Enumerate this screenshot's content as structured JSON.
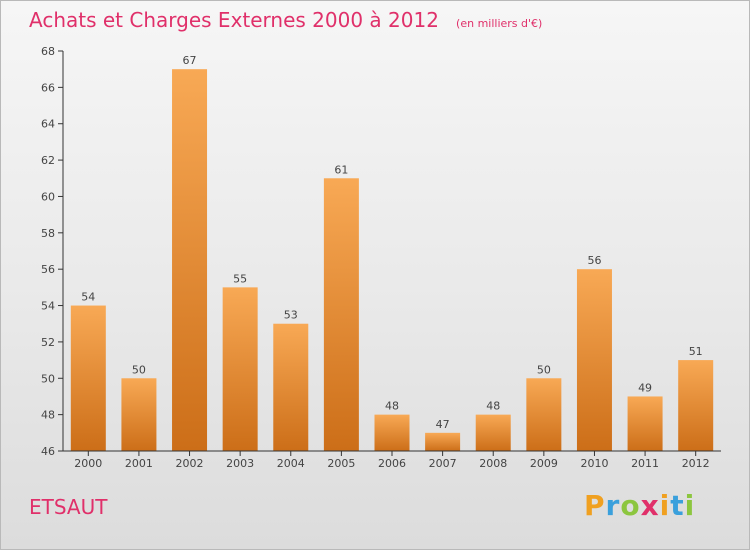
{
  "header": {
    "title": "Achats et Charges Externes 2000 à 2012",
    "subtitle": "(en milliers d'€)"
  },
  "footer": {
    "commune": "ETSAUT",
    "brand": {
      "letters": [
        "P",
        "r",
        "o",
        "x",
        "i",
        "t",
        "i"
      ],
      "colors": [
        "#f0a020",
        "#3aa0dc",
        "#8cc63f",
        "#e0306a",
        "#f0a020",
        "#3aa0dc",
        "#8cc63f"
      ]
    }
  },
  "chart_data": {
    "type": "bar",
    "title": "Achats et Charges Externes 2000 à 2012",
    "subtitle": "(en milliers d'€)",
    "xlabel": "",
    "ylabel": "",
    "categories": [
      "2000",
      "2001",
      "2002",
      "2003",
      "2004",
      "2005",
      "2006",
      "2007",
      "2008",
      "2009",
      "2010",
      "2011",
      "2012"
    ],
    "values": [
      54,
      50,
      67,
      55,
      53,
      61,
      48,
      47,
      48,
      50,
      56,
      49,
      51
    ],
    "ylim": [
      46,
      68
    ],
    "yticks": [
      46,
      48,
      50,
      52,
      54,
      56,
      58,
      60,
      62,
      64,
      66,
      68
    ],
    "grid": false,
    "colors": {
      "bar_top": "#f8a955",
      "bar_bottom": "#cc6e18",
      "axis": "#333333"
    }
  }
}
